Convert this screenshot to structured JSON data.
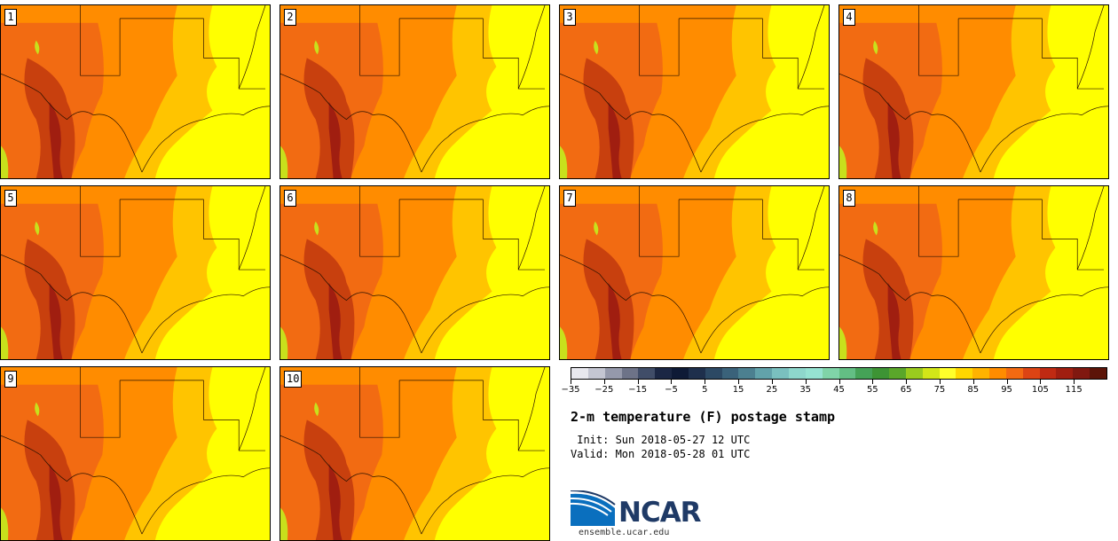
{
  "panels": [
    {
      "label": "1"
    },
    {
      "label": "2"
    },
    {
      "label": "3"
    },
    {
      "label": "4"
    },
    {
      "label": "5"
    },
    {
      "label": "6"
    },
    {
      "label": "7"
    },
    {
      "label": "8"
    },
    {
      "label": "9"
    },
    {
      "label": "10"
    }
  ],
  "colorbar": {
    "colors": [
      "#e8e8ee",
      "#c4c6d2",
      "#9599ab",
      "#6d7388",
      "#404d68",
      "#1b2744",
      "#0e1a36",
      "#1e2f4c",
      "#2c4964",
      "#3a627a",
      "#4c8090",
      "#62a2aa",
      "#7ac0bf",
      "#8ed7cc",
      "#96e3d2",
      "#80d4a8",
      "#63be84",
      "#45a257",
      "#3d9434",
      "#5aa72a",
      "#9acb1e",
      "#d2e618",
      "#ffff2a",
      "#ffd700",
      "#ffb300",
      "#ff8c00",
      "#f36a12",
      "#dc4414",
      "#c02a12",
      "#a01e10",
      "#801810",
      "#5c1408"
    ],
    "ticks": [
      "−35",
      "−25",
      "−15",
      "−5",
      "5",
      "15",
      "25",
      "35",
      "45",
      "55",
      "65",
      "75",
      "85",
      "95",
      "105",
      "115"
    ]
  },
  "title": "2-m temperature (F) postage stamp",
  "init": " Init: Sun 2018-05-27 12 UTC",
  "valid": "Valid: Mon 2018-05-28 01 UTC",
  "logo": {
    "text": "NCAR",
    "url": "ensemble.ucar.edu"
  },
  "map_colors": {
    "gulf": "#ffff00",
    "warm": "#ffc400",
    "hot": "#ff8c00",
    "hotter": "#f26b12",
    "hottest": "#c8400e",
    "extreme": "#a01e10",
    "cool": "#c8e01c"
  }
}
